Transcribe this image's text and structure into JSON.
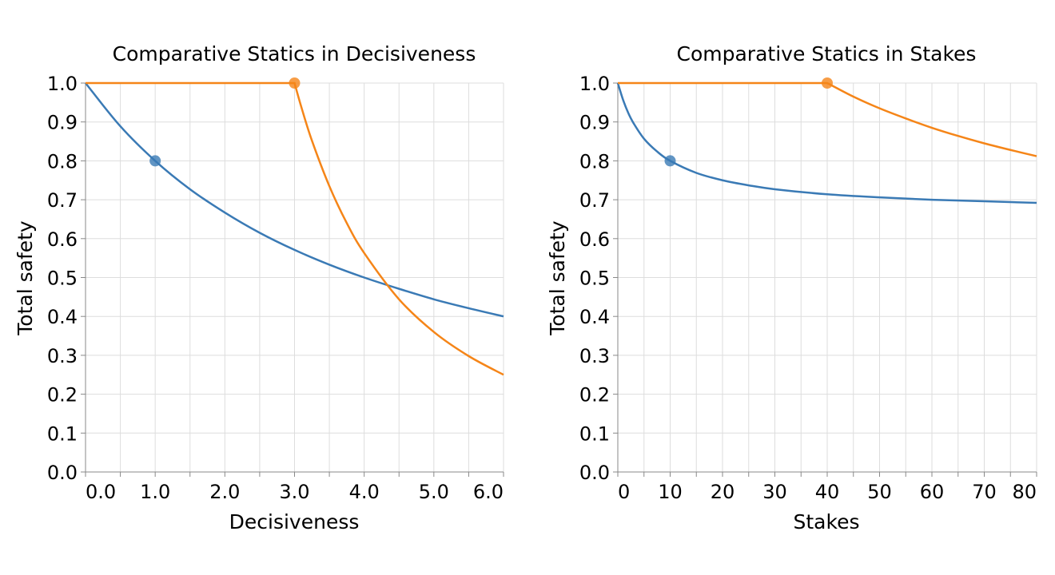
{
  "chart_data": [
    {
      "type": "line",
      "title": "Comparative Statics in Decisiveness",
      "xlabel": "Decisiveness",
      "ylabel": "Total safety",
      "xlim": [
        0,
        6
      ],
      "ylim": [
        0,
        1
      ],
      "x_tick_labels": [
        "0.0",
        "1.0",
        "2.0",
        "3.0",
        "4.0",
        "5.0",
        "6.0"
      ],
      "x_ticks": [
        0,
        1,
        2,
        3,
        4,
        5,
        6
      ],
      "x_minor_step": 0.5,
      "y_ticks": [
        0,
        0.1,
        0.2,
        0.3,
        0.4,
        0.5,
        0.6,
        0.7,
        0.8,
        0.9,
        1.0
      ],
      "y_tick_labels": [
        "0.0",
        "0.1",
        "0.2",
        "0.3",
        "0.4",
        "0.5",
        "0.6",
        "0.7",
        "0.8",
        "0.9",
        "1.0"
      ],
      "grid": true,
      "series": [
        {
          "color": "#3a7ab5",
          "x": [
            0,
            0.5,
            1,
            1.5,
            2,
            2.5,
            3,
            3.5,
            4,
            4.5,
            5,
            5.5,
            6
          ],
          "y": [
            1,
            0.889,
            0.8,
            0.727,
            0.667,
            0.615,
            0.571,
            0.533,
            0.5,
            0.471,
            0.444,
            0.421,
            0.4
          ],
          "marker": [
            1,
            0.8
          ]
        },
        {
          "color": "#f58518",
          "x": [
            0,
            1,
            2,
            3,
            3.1,
            3.25,
            3.5,
            3.75,
            4,
            4.5,
            5,
            5.5,
            6
          ],
          "y": [
            1,
            1,
            1,
            1,
            0.937,
            0.852,
            0.735,
            0.64,
            0.563,
            0.444,
            0.36,
            0.298,
            0.25
          ],
          "marker": [
            3,
            1
          ]
        }
      ]
    },
    {
      "type": "line",
      "title": "Comparative Statics in Stakes",
      "xlabel": "Stakes",
      "ylabel": "Total safety",
      "xlim": [
        0,
        80
      ],
      "ylim": [
        0,
        1
      ],
      "x_tick_labels": [
        "0",
        "10",
        "20",
        "30",
        "40",
        "50",
        "60",
        "70",
        "80"
      ],
      "x_ticks": [
        0,
        10,
        20,
        30,
        40,
        50,
        60,
        70,
        80
      ],
      "x_minor_step": 5,
      "y_ticks": [
        0,
        0.1,
        0.2,
        0.3,
        0.4,
        0.5,
        0.6,
        0.7,
        0.8,
        0.9,
        1.0
      ],
      "y_tick_labels": [
        "0.0",
        "0.1",
        "0.2",
        "0.3",
        "0.4",
        "0.5",
        "0.6",
        "0.7",
        "0.8",
        "0.9",
        "1.0"
      ],
      "grid": true,
      "series": [
        {
          "color": "#3a7ab5",
          "x": [
            0,
            1,
            2,
            3,
            5,
            7.5,
            10,
            15,
            20,
            25,
            30,
            40,
            50,
            60,
            70,
            80
          ],
          "y": [
            1,
            0.957,
            0.923,
            0.897,
            0.857,
            0.824,
            0.8,
            0.769,
            0.75,
            0.737,
            0.727,
            0.714,
            0.706,
            0.7,
            0.696,
            0.692
          ],
          "marker": [
            10,
            0.8
          ]
        },
        {
          "color": "#f58518",
          "x": [
            0,
            20,
            40,
            45,
            50,
            55,
            60,
            65,
            70,
            75,
            80
          ],
          "y": [
            1,
            1,
            1,
            0.965,
            0.935,
            0.909,
            0.885,
            0.864,
            0.845,
            0.828,
            0.812
          ],
          "marker": [
            40,
            1
          ]
        }
      ]
    }
  ]
}
